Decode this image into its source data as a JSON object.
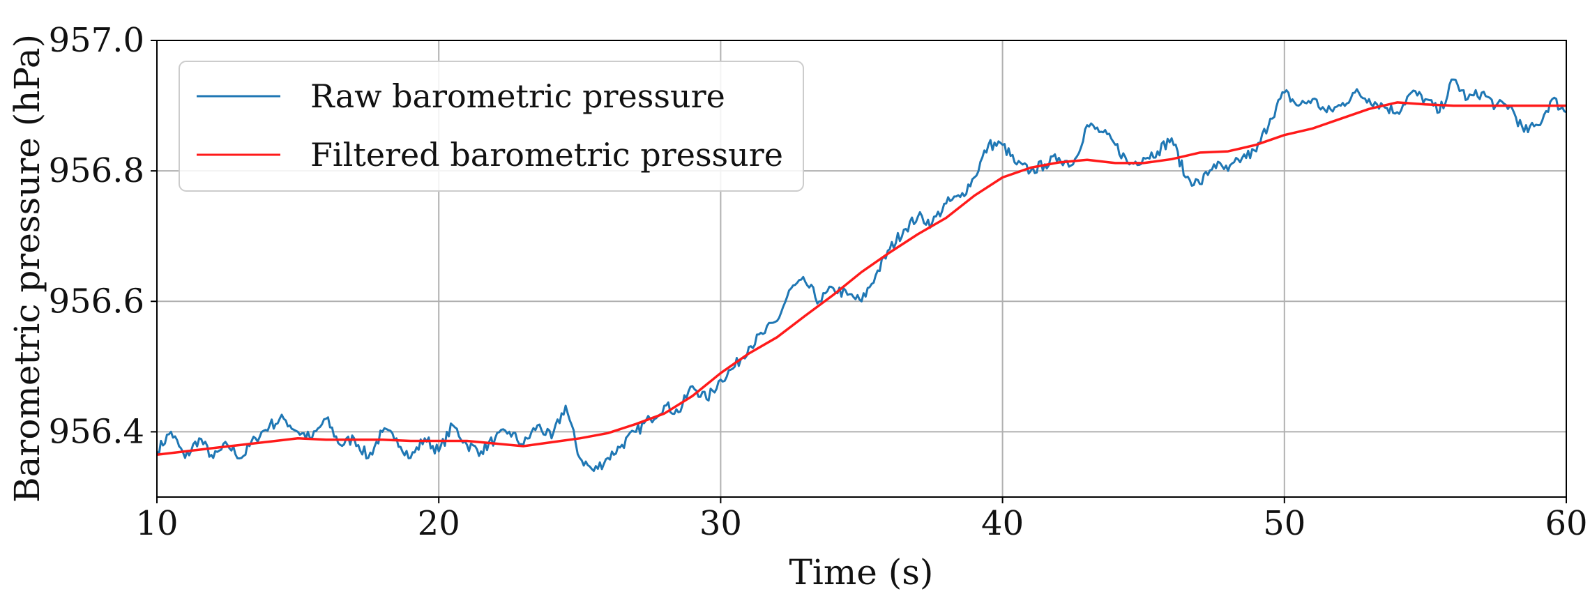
{
  "chart_data": {
    "type": "line",
    "title": "",
    "xlabel": "Time (s)",
    "ylabel": "Barometric pressure (hPa)",
    "xlim": [
      10,
      60
    ],
    "ylim": [
      956.3,
      957.0
    ],
    "xticks": [
      10,
      20,
      30,
      40,
      50,
      60
    ],
    "xtick_labels": [
      "10",
      "20",
      "30",
      "40",
      "50",
      "60"
    ],
    "yticks": [
      956.4,
      956.6,
      956.8,
      957.0
    ],
    "ytick_labels": [
      "956.4",
      "956.6",
      "956.8",
      "957.0"
    ],
    "grid": true,
    "legend_position": "top-left",
    "series": [
      {
        "name": "Raw barometric pressure",
        "color": "#1f77b4",
        "x": [
          10,
          10.5,
          11,
          11.5,
          12,
          12.5,
          13,
          13.5,
          14,
          14.5,
          15,
          15.5,
          16,
          16.5,
          17,
          17.5,
          18,
          18.5,
          19,
          19.5,
          20,
          20.5,
          21,
          21.5,
          22,
          22.5,
          23,
          23.5,
          24,
          24.5,
          25,
          25.5,
          26,
          26.5,
          27,
          27.5,
          28,
          28.5,
          29,
          29.5,
          30,
          30.5,
          31,
          31.5,
          32,
          32.5,
          33,
          33.5,
          34,
          34.5,
          35,
          35.5,
          36,
          36.5,
          37,
          37.5,
          38,
          38.5,
          39,
          39.5,
          40,
          40.5,
          41,
          41.5,
          42,
          42.5,
          43,
          43.5,
          44,
          44.5,
          45,
          45.5,
          46,
          46.5,
          47,
          47.5,
          48,
          48.5,
          49,
          49.5,
          50,
          50.5,
          51,
          51.5,
          52,
          52.5,
          53,
          53.5,
          54,
          54.5,
          55,
          55.5,
          56,
          56.5,
          57,
          57.5,
          58,
          58.5,
          59,
          59.5,
          60
        ],
        "values": [
          956.37,
          956.4,
          956.36,
          956.39,
          956.36,
          956.38,
          956.36,
          956.39,
          956.41,
          956.42,
          956.4,
          956.39,
          956.42,
          956.38,
          956.39,
          956.36,
          956.4,
          956.39,
          956.36,
          956.39,
          956.37,
          956.41,
          956.38,
          956.37,
          956.39,
          956.4,
          956.38,
          956.41,
          956.39,
          956.44,
          956.36,
          956.34,
          956.36,
          956.38,
          956.4,
          956.42,
          956.44,
          956.43,
          956.47,
          956.45,
          956.48,
          956.5,
          956.53,
          956.55,
          956.57,
          956.62,
          956.63,
          956.6,
          956.62,
          956.61,
          956.6,
          956.64,
          956.68,
          956.71,
          956.73,
          956.72,
          956.75,
          956.76,
          956.79,
          956.84,
          956.84,
          956.81,
          956.8,
          956.81,
          956.82,
          956.81,
          956.87,
          956.86,
          956.84,
          956.81,
          956.82,
          956.83,
          956.85,
          956.79,
          956.78,
          956.81,
          956.8,
          956.82,
          956.83,
          956.88,
          956.92,
          956.9,
          956.91,
          956.89,
          956.9,
          956.92,
          956.91,
          956.9,
          956.89,
          956.92,
          956.91,
          956.89,
          956.94,
          956.91,
          956.92,
          956.9,
          956.9,
          956.86,
          956.87,
          956.91,
          956.89
        ],
        "noise_seed": 7
      },
      {
        "name": "Filtered barometric pressure",
        "color": "#ff1a1a",
        "x": [
          10,
          11,
          12,
          13,
          14,
          15,
          16,
          17,
          18,
          19,
          20,
          21,
          22,
          23,
          24,
          25,
          26,
          27,
          28,
          29,
          30,
          31,
          32,
          33,
          34,
          35,
          36,
          37,
          38,
          39,
          40,
          41,
          42,
          43,
          44,
          45,
          46,
          47,
          48,
          49,
          50,
          51,
          52,
          53,
          54,
          55,
          56,
          57,
          58,
          59,
          60
        ],
        "values": [
          956.365,
          956.37,
          956.375,
          956.38,
          956.385,
          956.39,
          956.388,
          956.388,
          956.388,
          956.386,
          956.386,
          956.386,
          956.382,
          956.378,
          956.384,
          956.39,
          956.398,
          956.412,
          956.428,
          956.455,
          956.49,
          956.52,
          956.545,
          956.578,
          956.61,
          956.645,
          956.675,
          956.703,
          956.728,
          956.762,
          956.79,
          956.805,
          956.813,
          956.817,
          956.812,
          956.812,
          956.818,
          956.828,
          956.83,
          956.84,
          956.855,
          956.865,
          956.88,
          956.895,
          956.905,
          956.902,
          956.9,
          956.9,
          956.9,
          956.9,
          956.9
        ]
      }
    ]
  }
}
